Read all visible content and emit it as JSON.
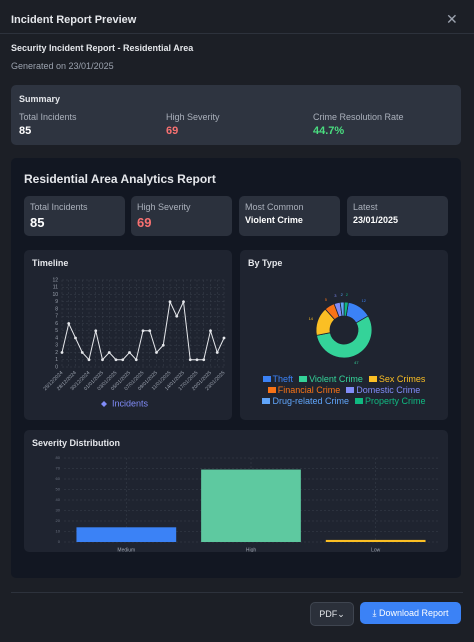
{
  "modal": {
    "title": "Incident Report Preview"
  },
  "report": {
    "title": "Security Incident Report - Residential Area",
    "generated": "Generated on 23/01/2025"
  },
  "summary": {
    "heading": "Summary",
    "items": [
      {
        "label": "Total Incidents",
        "value": "85"
      },
      {
        "label": "High Severity",
        "value": "69"
      },
      {
        "label": "Crime Resolution Rate",
        "value": "44.7%"
      }
    ]
  },
  "analytics": {
    "title": "Residential Area Analytics Report",
    "cards": [
      {
        "label": "Total Incidents",
        "value": "85"
      },
      {
        "label": "High Severity",
        "value": "69"
      },
      {
        "label": "Most Common",
        "value": "Violent Crime"
      },
      {
        "label": "Latest",
        "value": "23/01/2025"
      }
    ]
  },
  "charts": [
    {
      "type": "line",
      "title": "Timeline",
      "categories": [
        "25/12/2024",
        null,
        "28/12/2024",
        null,
        "30/12/2024",
        null,
        "01/01/2025",
        null,
        "03/01/2025",
        null,
        "05/01/2025",
        null,
        "07/01/2025",
        null,
        "09/01/2025",
        null,
        "11/01/2025",
        null,
        "14/01/2025",
        null,
        "17/01/2025",
        null,
        "20/01/2025",
        null,
        "23/01/2025"
      ],
      "series": [
        {
          "name": "Incidents",
          "color": "#e5e7eb",
          "values": [
            2,
            6,
            4,
            2,
            1,
            5,
            1,
            2,
            1,
            1,
            2,
            1,
            5,
            5,
            2,
            3,
            9,
            7,
            9,
            1,
            1,
            1,
            5,
            2,
            4
          ]
        }
      ],
      "ylim": [
        0,
        12
      ],
      "yticks": [
        0,
        1,
        2,
        3,
        4,
        5,
        6,
        7,
        8,
        9,
        10,
        11,
        12
      ],
      "grid": true
    },
    {
      "type": "pie",
      "title": "By Type",
      "categories": [
        "Theft",
        "Violent Crime",
        "Sex Crimes",
        "Financial Crime",
        "Domestic Crime",
        "Drug-related Crime",
        "Property Crime"
      ],
      "values": [
        12,
        47,
        14,
        5,
        3,
        2,
        2
      ],
      "colors": [
        "#3b82f6",
        "#34d399",
        "#fbbf24",
        "#f97316",
        "#818cf8",
        "#60a5fa",
        "#10b981"
      ]
    },
    {
      "type": "bar",
      "title": "Severity Distribution",
      "categories": [
        "Medium",
        "High",
        "Low"
      ],
      "values": [
        14,
        69,
        2
      ],
      "colors": [
        "#3b82f6",
        "#5ec9a0",
        "#fbbf24"
      ],
      "ylim": [
        0,
        80
      ],
      "yticks": [
        0,
        10,
        20,
        30,
        40,
        50,
        60,
        70,
        80
      ],
      "grid": true
    }
  ],
  "footer": {
    "format": "PDF",
    "button": "Download Report"
  }
}
